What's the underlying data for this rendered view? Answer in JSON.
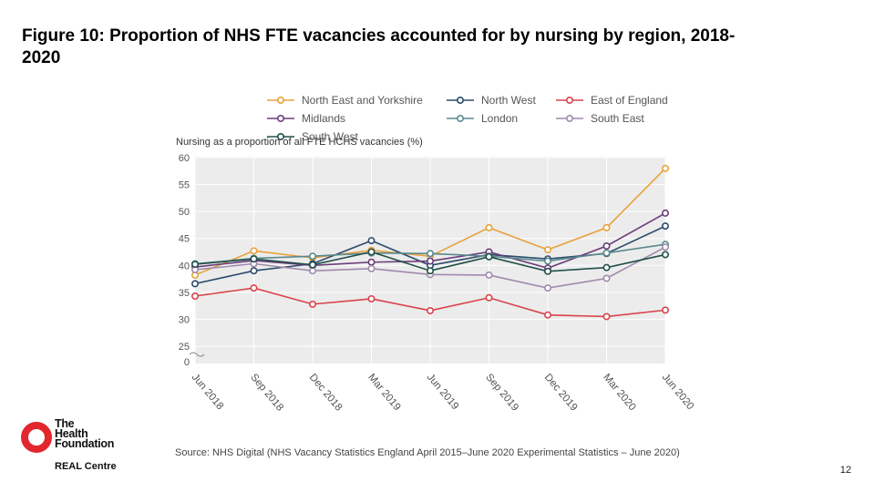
{
  "page": {
    "title": "Figure 10: Proportion of NHS FTE vacancies accounted for by nursing by region, 2018-2020",
    "source": "Source: NHS Digital (NHS Vacancy Statistics England April 2015–June 2020 Experimental Statistics – June 2020)",
    "page_number": "12",
    "logo_lines": [
      "The",
      "Health",
      "Foundation"
    ],
    "logo_subtitle": "REAL Centre",
    "logo_color": "#e3262d"
  },
  "chart_data": {
    "type": "line",
    "ylabel": "Nursing as a proportion of all FTE HCHS vacancies (%)",
    "categories": [
      "Jun 2018",
      "Sep 2018",
      "Dec 2018",
      "Mar 2019",
      "Jun 2019",
      "Sep 2019",
      "Dec 2019",
      "Mar 2020",
      "Jun 2020"
    ],
    "ylim": [
      25,
      60
    ],
    "yticks": [
      60,
      55,
      50,
      45,
      40,
      35,
      30,
      25,
      0
    ],
    "axis_break": true,
    "grid": true,
    "legend_position": "top",
    "series": [
      {
        "name": "North East and Yorkshire",
        "color": "#e8a23a",
        "values": [
          38.2,
          42.7,
          41.4,
          42.8,
          41.7,
          47.0,
          42.9,
          47.0,
          58.0
        ]
      },
      {
        "name": "North West",
        "color": "#2c4c6b",
        "values": [
          36.6,
          39.0,
          40.3,
          44.6,
          40.0,
          42.0,
          41.2,
          42.2,
          47.3
        ]
      },
      {
        "name": "East of England",
        "color": "#d9434b",
        "values": [
          34.3,
          35.8,
          32.8,
          33.8,
          31.6,
          34.0,
          30.8,
          30.5,
          31.7
        ]
      },
      {
        "name": "Midlands",
        "color": "#6b3d7a",
        "values": [
          39.7,
          40.9,
          40.0,
          40.6,
          40.8,
          42.5,
          39.5,
          43.6,
          49.7
        ]
      },
      {
        "name": "London",
        "color": "#5a8a8f",
        "values": [
          40.3,
          41.3,
          41.7,
          42.3,
          42.2,
          41.7,
          40.8,
          42.3,
          43.9
        ]
      },
      {
        "name": "South East",
        "color": "#a08aab",
        "values": [
          39.2,
          40.3,
          39.0,
          39.4,
          38.3,
          38.2,
          35.8,
          37.6,
          43.4
        ]
      },
      {
        "name": "South West",
        "color": "#22504a",
        "values": [
          40.2,
          41.2,
          40.1,
          42.5,
          39.0,
          41.6,
          38.9,
          39.6,
          42.0
        ]
      }
    ]
  }
}
